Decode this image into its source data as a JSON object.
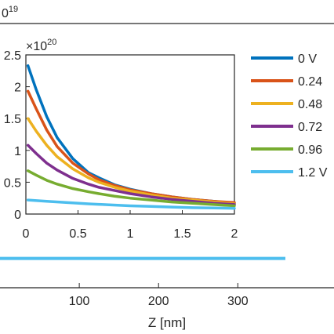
{
  "chart_data": [
    {
      "type": "line",
      "role": "main",
      "xlabel": "Z [nm]",
      "ylabel": "",
      "x_ticks": [
        100,
        200,
        300
      ],
      "xlim": [
        0,
        360
      ],
      "y_exponent_label": "0",
      "y_exponent_power": "19",
      "grid": false,
      "series": [
        {
          "color": "#4DBEEE",
          "x": [
            0,
            360
          ],
          "y": [
            0.07,
            0.07
          ]
        }
      ]
    },
    {
      "type": "line",
      "role": "inset",
      "xlabel": "",
      "ylabel": "",
      "x_ticks": [
        "0",
        "0.5",
        "1",
        "1.5",
        "2"
      ],
      "y_ticks": [
        "0",
        "0.5",
        "1",
        "1.5",
        "2",
        "2.5"
      ],
      "xlim": [
        0,
        2
      ],
      "ylim": [
        0,
        2.5
      ],
      "y_multiplier_label": "×10",
      "y_multiplier_power": "20",
      "grid": false,
      "legend_position": "outside-right",
      "series": [
        {
          "name": "0 V",
          "color": "#0072BD",
          "x": [
            0.02,
            0.1,
            0.2,
            0.3,
            0.45,
            0.6,
            0.7,
            0.85,
            1.0,
            1.2,
            1.4,
            1.6,
            1.8,
            2.0
          ],
          "y": [
            2.33,
            1.95,
            1.53,
            1.2,
            0.87,
            0.65,
            0.57,
            0.46,
            0.39,
            0.32,
            0.27,
            0.23,
            0.2,
            0.17
          ]
        },
        {
          "name": "0.24",
          "color": "#D95319",
          "x": [
            0.02,
            0.1,
            0.2,
            0.3,
            0.45,
            0.6,
            0.7,
            0.85,
            1.0,
            1.2,
            1.4,
            1.6,
            1.8,
            2.0
          ],
          "y": [
            1.93,
            1.65,
            1.32,
            1.06,
            0.8,
            0.63,
            0.54,
            0.45,
            0.38,
            0.32,
            0.27,
            0.23,
            0.2,
            0.18
          ]
        },
        {
          "name": "0.48",
          "color": "#EDB120",
          "x": [
            0.02,
            0.1,
            0.2,
            0.3,
            0.45,
            0.6,
            0.7,
            0.85,
            1.0,
            1.2,
            1.4,
            1.6,
            1.8,
            2.0
          ],
          "y": [
            1.5,
            1.3,
            1.08,
            0.9,
            0.71,
            0.57,
            0.5,
            0.42,
            0.36,
            0.3,
            0.25,
            0.22,
            0.19,
            0.16
          ]
        },
        {
          "name": "0.72",
          "color": "#7E2F8E",
          "x": [
            0.02,
            0.1,
            0.2,
            0.3,
            0.45,
            0.6,
            0.7,
            0.85,
            1.0,
            1.2,
            1.4,
            1.6,
            1.8,
            2.0
          ],
          "y": [
            1.08,
            0.95,
            0.8,
            0.69,
            0.56,
            0.47,
            0.42,
            0.37,
            0.32,
            0.27,
            0.23,
            0.2,
            0.17,
            0.15
          ]
        },
        {
          "name": "0.96",
          "color": "#77AC30",
          "x": [
            0.02,
            0.1,
            0.2,
            0.3,
            0.45,
            0.6,
            0.7,
            0.85,
            1.0,
            1.2,
            1.4,
            1.6,
            1.8,
            2.0
          ],
          "y": [
            0.68,
            0.61,
            0.53,
            0.47,
            0.4,
            0.35,
            0.32,
            0.28,
            0.25,
            0.22,
            0.19,
            0.17,
            0.15,
            0.13
          ]
        },
        {
          "name": "1.2 V",
          "color": "#4DBEEE",
          "x": [
            0.02,
            0.2,
            0.4,
            0.6,
            0.8,
            1.0,
            1.2,
            1.4,
            1.6,
            1.8,
            2.0
          ],
          "y": [
            0.22,
            0.2,
            0.18,
            0.16,
            0.145,
            0.13,
            0.12,
            0.11,
            0.1,
            0.095,
            0.09
          ]
        }
      ]
    }
  ]
}
